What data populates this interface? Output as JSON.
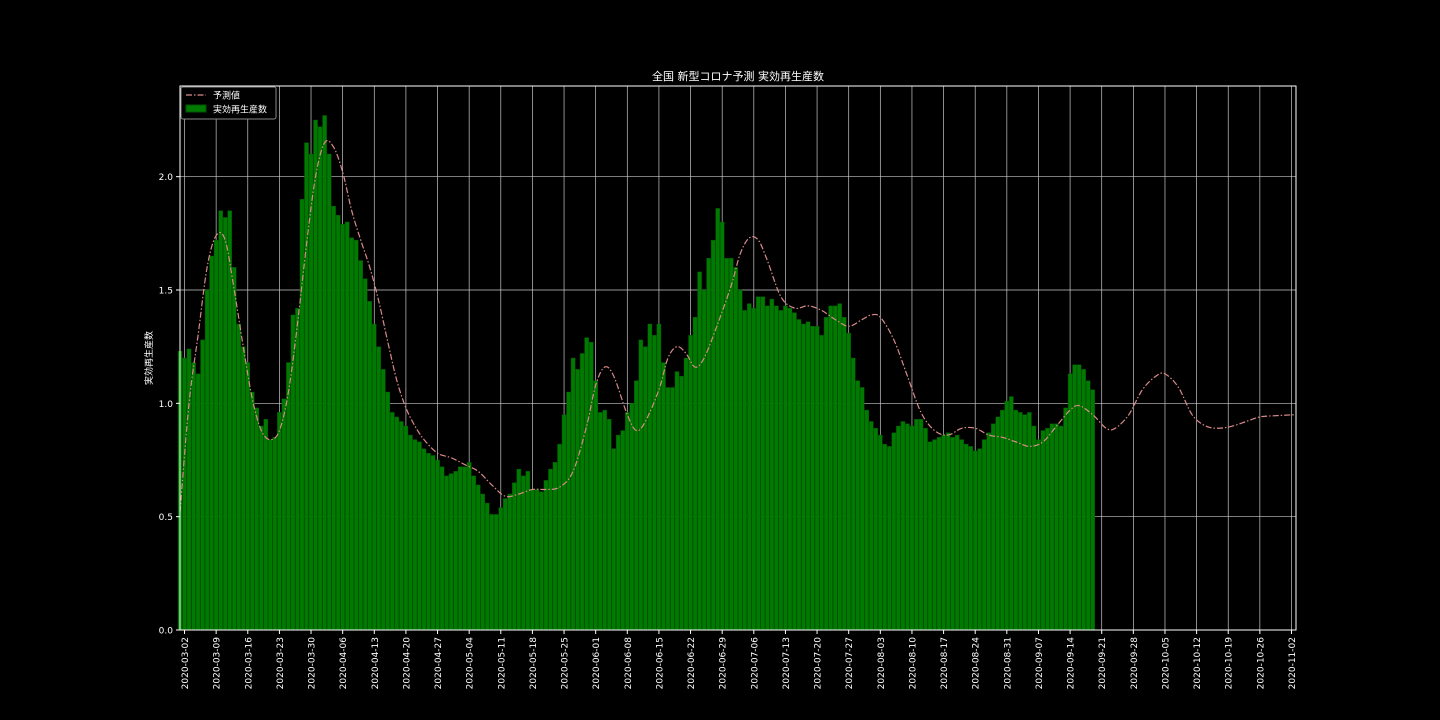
{
  "chart_data": {
    "type": "bar",
    "title": "全国 新型コロナ予測 実効再生産数",
    "ylabel": "実効再生産数",
    "xlabel": "",
    "ylim": [
      0,
      2.4
    ],
    "xlim": [
      "2020-03-01",
      "2020-11-03"
    ],
    "yticks": [
      0.0,
      0.5,
      1.0,
      1.5,
      2.0
    ],
    "ytick_labels": [
      "0.0",
      "0.5",
      "1.0",
      "1.5",
      "2.0"
    ],
    "xticks": [
      "2020-03-02",
      "2020-03-09",
      "2020-03-16",
      "2020-03-23",
      "2020-03-30",
      "2020-04-06",
      "2020-04-13",
      "2020-04-20",
      "2020-04-27",
      "2020-05-04",
      "2020-05-11",
      "2020-05-18",
      "2020-05-25",
      "2020-06-01",
      "2020-06-08",
      "2020-06-15",
      "2020-06-22",
      "2020-06-29",
      "2020-07-06",
      "2020-07-13",
      "2020-07-20",
      "2020-07-27",
      "2020-08-03",
      "2020-08-10",
      "2020-08-17",
      "2020-08-24",
      "2020-08-31",
      "2020-09-07",
      "2020-09-14",
      "2020-09-21",
      "2020-09-28",
      "2020-10-05",
      "2020-10-12",
      "2020-10-19",
      "2020-10-26",
      "2020-11-02"
    ],
    "grid": true,
    "legend_position": "top-left",
    "colors": {
      "bars": "#007a00",
      "bar_edge": "#005500",
      "prediction": "#d98a8a",
      "grid": "#c8c8c8",
      "axes": "#ffffff",
      "background": "#000000"
    },
    "series": [
      {
        "name": "予測値",
        "kind": "line",
        "style": "dash-dot",
        "x_start": "2020-03-01",
        "points": [
          [
            "2020-03-01",
            0.52
          ],
          [
            "2020-03-03",
            1.0
          ],
          [
            "2020-03-05",
            1.3
          ],
          [
            "2020-03-07",
            1.6
          ],
          [
            "2020-03-09",
            1.74
          ],
          [
            "2020-03-11",
            1.72
          ],
          [
            "2020-03-13",
            1.5
          ],
          [
            "2020-03-15",
            1.25
          ],
          [
            "2020-03-17",
            1.02
          ],
          [
            "2020-03-19",
            0.88
          ],
          [
            "2020-03-21",
            0.84
          ],
          [
            "2020-03-23",
            0.88
          ],
          [
            "2020-03-25",
            1.05
          ],
          [
            "2020-03-27",
            1.35
          ],
          [
            "2020-03-29",
            1.7
          ],
          [
            "2020-03-31",
            2.0
          ],
          [
            "2020-04-02",
            2.15
          ],
          [
            "2020-04-04",
            2.13
          ],
          [
            "2020-04-06",
            2.02
          ],
          [
            "2020-04-08",
            1.85
          ],
          [
            "2020-04-10",
            1.72
          ],
          [
            "2020-04-12",
            1.6
          ],
          [
            "2020-04-14",
            1.45
          ],
          [
            "2020-04-16",
            1.27
          ],
          [
            "2020-04-18",
            1.1
          ],
          [
            "2020-04-20",
            0.98
          ],
          [
            "2020-04-22",
            0.9
          ],
          [
            "2020-04-24",
            0.84
          ],
          [
            "2020-04-27",
            0.78
          ],
          [
            "2020-04-30",
            0.76
          ],
          [
            "2020-05-03",
            0.73
          ],
          [
            "2020-05-06",
            0.7
          ],
          [
            "2020-05-09",
            0.64
          ],
          [
            "2020-05-12",
            0.59
          ],
          [
            "2020-05-15",
            0.6
          ],
          [
            "2020-05-18",
            0.62
          ],
          [
            "2020-05-21",
            0.62
          ],
          [
            "2020-05-24",
            0.63
          ],
          [
            "2020-05-27",
            0.7
          ],
          [
            "2020-05-30",
            0.9
          ],
          [
            "2020-06-01",
            1.08
          ],
          [
            "2020-06-03",
            1.16
          ],
          [
            "2020-06-05",
            1.12
          ],
          [
            "2020-06-08",
            0.95
          ],
          [
            "2020-06-10",
            0.88
          ],
          [
            "2020-06-12",
            0.92
          ],
          [
            "2020-06-15",
            1.06
          ],
          [
            "2020-06-17",
            1.2
          ],
          [
            "2020-06-19",
            1.25
          ],
          [
            "2020-06-21",
            1.22
          ],
          [
            "2020-06-23",
            1.16
          ],
          [
            "2020-06-25",
            1.2
          ],
          [
            "2020-06-28",
            1.35
          ],
          [
            "2020-07-01",
            1.52
          ],
          [
            "2020-07-03",
            1.66
          ],
          [
            "2020-07-05",
            1.73
          ],
          [
            "2020-07-07",
            1.72
          ],
          [
            "2020-07-09",
            1.63
          ],
          [
            "2020-07-12",
            1.47
          ],
          [
            "2020-07-15",
            1.42
          ],
          [
            "2020-07-18",
            1.43
          ],
          [
            "2020-07-21",
            1.41
          ],
          [
            "2020-07-24",
            1.37
          ],
          [
            "2020-07-27",
            1.34
          ],
          [
            "2020-07-30",
            1.37
          ],
          [
            "2020-08-01",
            1.39
          ],
          [
            "2020-08-03",
            1.38
          ],
          [
            "2020-08-06",
            1.28
          ],
          [
            "2020-08-09",
            1.12
          ],
          [
            "2020-08-12",
            0.96
          ],
          [
            "2020-08-15",
            0.88
          ],
          [
            "2020-08-18",
            0.86
          ],
          [
            "2020-08-21",
            0.89
          ],
          [
            "2020-08-24",
            0.89
          ],
          [
            "2020-08-27",
            0.86
          ],
          [
            "2020-08-30",
            0.85
          ],
          [
            "2020-09-02",
            0.83
          ],
          [
            "2020-09-05",
            0.81
          ],
          [
            "2020-09-08",
            0.83
          ],
          [
            "2020-09-11",
            0.9
          ],
          [
            "2020-09-14",
            0.97
          ],
          [
            "2020-09-16",
            0.99
          ],
          [
            "2020-09-19",
            0.95
          ],
          [
            "2020-09-22",
            0.89
          ],
          [
            "2020-09-24",
            0.89
          ],
          [
            "2020-09-27",
            0.95
          ],
          [
            "2020-09-30",
            1.06
          ],
          [
            "2020-10-03",
            1.12
          ],
          [
            "2020-10-05",
            1.13
          ],
          [
            "2020-10-08",
            1.07
          ],
          [
            "2020-10-11",
            0.95
          ],
          [
            "2020-10-14",
            0.9
          ],
          [
            "2020-10-17",
            0.89
          ],
          [
            "2020-10-20",
            0.9
          ],
          [
            "2020-10-23",
            0.92
          ],
          [
            "2020-10-26",
            0.94
          ],
          [
            "2020-10-29",
            0.945
          ],
          [
            "2020-11-03",
            0.95
          ]
        ]
      },
      {
        "name": "実効再生産数",
        "kind": "bar",
        "x_start": "2020-03-01",
        "values": [
          1.23,
          1.2,
          1.24,
          1.18,
          1.13,
          1.28,
          1.5,
          1.65,
          1.72,
          1.85,
          1.82,
          1.85,
          1.6,
          1.35,
          1.25,
          1.18,
          1.05,
          0.98,
          0.9,
          0.93,
          0.84,
          0.85,
          0.96,
          1.02,
          1.18,
          1.39,
          1.42,
          1.9,
          2.15,
          2.1,
          2.25,
          2.22,
          2.27,
          2.1,
          1.87,
          1.83,
          1.79,
          1.8,
          1.73,
          1.72,
          1.63,
          1.55,
          1.45,
          1.35,
          1.25,
          1.15,
          1.05,
          0.96,
          0.94,
          0.92,
          0.9,
          0.86,
          0.84,
          0.83,
          0.8,
          0.78,
          0.77,
          0.75,
          0.72,
          0.68,
          0.69,
          0.7,
          0.72,
          0.72,
          0.74,
          0.68,
          0.64,
          0.6,
          0.56,
          0.51,
          0.51,
          0.54,
          0.58,
          0.6,
          0.65,
          0.71,
          0.68,
          0.7,
          0.62,
          0.62,
          0.61,
          0.66,
          0.71,
          0.74,
          0.82,
          0.95,
          1.05,
          1.2,
          1.15,
          1.22,
          1.29,
          1.27,
          1.1,
          0.96,
          0.97,
          0.93,
          0.8,
          0.86,
          0.88,
          0.96,
          1.0,
          1.1,
          1.28,
          1.25,
          1.35,
          1.3,
          1.35,
          1.18,
          1.07,
          1.07,
          1.14,
          1.12,
          1.2,
          1.3,
          1.38,
          1.58,
          1.5,
          1.64,
          1.72,
          1.86,
          1.8,
          1.64,
          1.64,
          1.6,
          1.5,
          1.41,
          1.44,
          1.42,
          1.47,
          1.47,
          1.43,
          1.46,
          1.43,
          1.41,
          1.43,
          1.42,
          1.4,
          1.37,
          1.35,
          1.36,
          1.34,
          1.34,
          1.3,
          1.38,
          1.43,
          1.43,
          1.44,
          1.38,
          1.31,
          1.2,
          1.1,
          1.07,
          0.97,
          0.92,
          0.89,
          0.86,
          0.82,
          0.81,
          0.87,
          0.9,
          0.92,
          0.91,
          0.9,
          0.93,
          0.93,
          0.89,
          0.83,
          0.84,
          0.85,
          0.86,
          0.87,
          0.85,
          0.86,
          0.84,
          0.82,
          0.81,
          0.79,
          0.8,
          0.84,
          0.87,
          0.91,
          0.94,
          0.97,
          1.01,
          1.03,
          0.97,
          0.96,
          0.95,
          0.96,
          0.9,
          0.84,
          0.88,
          0.89,
          0.91,
          0.91,
          0.9,
          0.98,
          1.13,
          1.17,
          1.17,
          1.15,
          1.1,
          1.06
        ]
      }
    ]
  }
}
